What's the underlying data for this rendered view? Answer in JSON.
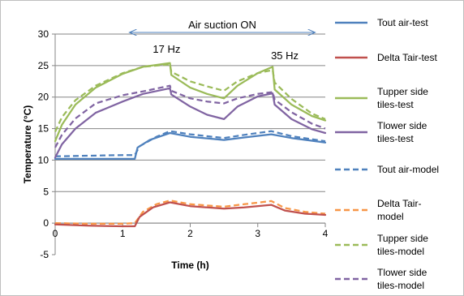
{
  "chart_data": {
    "type": "line",
    "title": "",
    "xlabel": "Time (h)",
    "ylabel": "Temperature (°C)",
    "xlim": [
      0,
      4
    ],
    "ylim": [
      -5,
      30
    ],
    "xticks": [
      0,
      1,
      2,
      3,
      4
    ],
    "yticks": [
      -5,
      0,
      5,
      10,
      15,
      20,
      25,
      30
    ],
    "grid": "horizontal",
    "legend": "right",
    "annotations": {
      "air_suction": {
        "label": "Air suction ON",
        "x_start": 1.1,
        "x_end": 3.85
      },
      "f1": {
        "label": "17 Hz",
        "x": 1.65
      },
      "f2": {
        "label": "35 Hz",
        "x": 3.4
      }
    },
    "series": [
      {
        "name": "Tout air-test",
        "color": "#4f81bd",
        "dash": false,
        "points": [
          [
            0,
            10.2
          ],
          [
            0.5,
            10.2
          ],
          [
            1.0,
            10.2
          ],
          [
            1.18,
            10.2
          ],
          [
            1.22,
            12.0
          ],
          [
            1.4,
            13.2
          ],
          [
            1.7,
            14.3
          ],
          [
            2.0,
            13.7
          ],
          [
            2.5,
            13.2
          ],
          [
            2.8,
            13.6
          ],
          [
            3.2,
            14.1
          ],
          [
            3.5,
            13.5
          ],
          [
            4.0,
            12.8
          ]
        ]
      },
      {
        "name": "Delta Tair-test",
        "color": "#c0504d",
        "dash": false,
        "points": [
          [
            0,
            -0.2
          ],
          [
            0.5,
            -0.4
          ],
          [
            1.0,
            -0.5
          ],
          [
            1.18,
            -0.5
          ],
          [
            1.25,
            1.0
          ],
          [
            1.45,
            2.5
          ],
          [
            1.7,
            3.3
          ],
          [
            2.0,
            2.7
          ],
          [
            2.5,
            2.3
          ],
          [
            2.8,
            2.5
          ],
          [
            3.2,
            2.9
          ],
          [
            3.4,
            2.0
          ],
          [
            3.7,
            1.5
          ],
          [
            4.0,
            1.3
          ]
        ]
      },
      {
        "name": "Tupper side tiles-test",
        "color": "#9bbb59",
        "dash": false,
        "points": [
          [
            0,
            13.0
          ],
          [
            0.1,
            15.6
          ],
          [
            0.3,
            18.8
          ],
          [
            0.6,
            21.5
          ],
          [
            1.0,
            23.7
          ],
          [
            1.3,
            24.8
          ],
          [
            1.7,
            25.4
          ],
          [
            1.72,
            23.5
          ],
          [
            2.0,
            21.5
          ],
          [
            2.25,
            20.5
          ],
          [
            2.5,
            19.8
          ],
          [
            2.7,
            21.8
          ],
          [
            3.0,
            23.8
          ],
          [
            3.22,
            24.8
          ],
          [
            3.25,
            21.2
          ],
          [
            3.5,
            18.8
          ],
          [
            3.8,
            17.0
          ],
          [
            4.0,
            16.3
          ]
        ]
      },
      {
        "name": "Tlower side tiles-test",
        "color": "#8064a2",
        "dash": false,
        "points": [
          [
            0,
            10.4
          ],
          [
            0.1,
            12.5
          ],
          [
            0.3,
            15.0
          ],
          [
            0.6,
            17.5
          ],
          [
            1.0,
            19.3
          ],
          [
            1.3,
            20.5
          ],
          [
            1.7,
            21.4
          ],
          [
            1.72,
            20.4
          ],
          [
            2.0,
            18.5
          ],
          [
            2.25,
            17.2
          ],
          [
            2.5,
            16.5
          ],
          [
            2.7,
            18.5
          ],
          [
            3.0,
            20.1
          ],
          [
            3.22,
            20.6
          ],
          [
            3.25,
            18.8
          ],
          [
            3.5,
            16.5
          ],
          [
            3.8,
            14.9
          ],
          [
            4.0,
            14.3
          ]
        ]
      },
      {
        "name": "Tout air-model",
        "color": "#4f81bd",
        "dash": true,
        "points": [
          [
            0,
            10.6
          ],
          [
            0.5,
            10.7
          ],
          [
            1.0,
            10.8
          ],
          [
            1.18,
            10.8
          ],
          [
            1.25,
            12.2
          ],
          [
            1.5,
            13.7
          ],
          [
            1.7,
            14.6
          ],
          [
            2.0,
            14.1
          ],
          [
            2.5,
            13.5
          ],
          [
            2.8,
            14.0
          ],
          [
            3.2,
            14.6
          ],
          [
            3.5,
            13.8
          ],
          [
            4.0,
            13.0
          ]
        ]
      },
      {
        "name": "Delta Tair-model",
        "color": "#f79646",
        "dash": true,
        "points": [
          [
            0,
            0
          ],
          [
            0.5,
            -0.1
          ],
          [
            1.0,
            -0.1
          ],
          [
            1.18,
            0
          ],
          [
            1.3,
            1.8
          ],
          [
            1.5,
            3.0
          ],
          [
            1.7,
            3.6
          ],
          [
            2.0,
            3.0
          ],
          [
            2.5,
            2.6
          ],
          [
            2.8,
            3.0
          ],
          [
            3.2,
            3.5
          ],
          [
            3.4,
            2.4
          ],
          [
            3.7,
            1.8
          ],
          [
            4.0,
            1.5
          ]
        ]
      },
      {
        "name": "Tupper side tiles-model",
        "color": "#9bbb59",
        "dash": true,
        "points": [
          [
            0,
            14.5
          ],
          [
            0.1,
            16.8
          ],
          [
            0.3,
            19.5
          ],
          [
            0.6,
            21.8
          ],
          [
            1.0,
            23.8
          ],
          [
            1.3,
            24.8
          ],
          [
            1.7,
            25.2
          ],
          [
            1.72,
            24.0
          ],
          [
            2.0,
            22.5
          ],
          [
            2.25,
            21.7
          ],
          [
            2.5,
            21.0
          ],
          [
            2.7,
            22.5
          ],
          [
            3.0,
            23.8
          ],
          [
            3.22,
            24.3
          ],
          [
            3.25,
            22.3
          ],
          [
            3.5,
            19.7
          ],
          [
            3.8,
            17.4
          ],
          [
            4.0,
            16.5
          ]
        ]
      },
      {
        "name": "Tlower side tiles-model",
        "color": "#8064a2",
        "dash": true,
        "points": [
          [
            0,
            12.0
          ],
          [
            0.1,
            14.0
          ],
          [
            0.3,
            16.6
          ],
          [
            0.6,
            19.0
          ],
          [
            1.0,
            20.3
          ],
          [
            1.3,
            20.9
          ],
          [
            1.7,
            21.8
          ],
          [
            1.72,
            21.0
          ],
          [
            2.0,
            19.8
          ],
          [
            2.25,
            19.3
          ],
          [
            2.5,
            19.0
          ],
          [
            2.7,
            19.8
          ],
          [
            3.0,
            20.5
          ],
          [
            3.22,
            20.8
          ],
          [
            3.25,
            19.6
          ],
          [
            3.5,
            17.6
          ],
          [
            3.8,
            15.8
          ],
          [
            4.0,
            15.0
          ]
        ]
      }
    ]
  },
  "legend": {
    "lines": [
      [
        "Tout air-test"
      ],
      [
        "Delta Tair-test"
      ],
      [
        "Tupper side",
        "tiles-test"
      ],
      [
        "Tlower side",
        "tiles-test"
      ],
      [
        "Tout air-model"
      ],
      [
        "Delta Tair-",
        "model"
      ],
      [
        "Tupper side",
        "tiles-model"
      ],
      [
        "Tlower side",
        "tiles-model"
      ]
    ]
  }
}
